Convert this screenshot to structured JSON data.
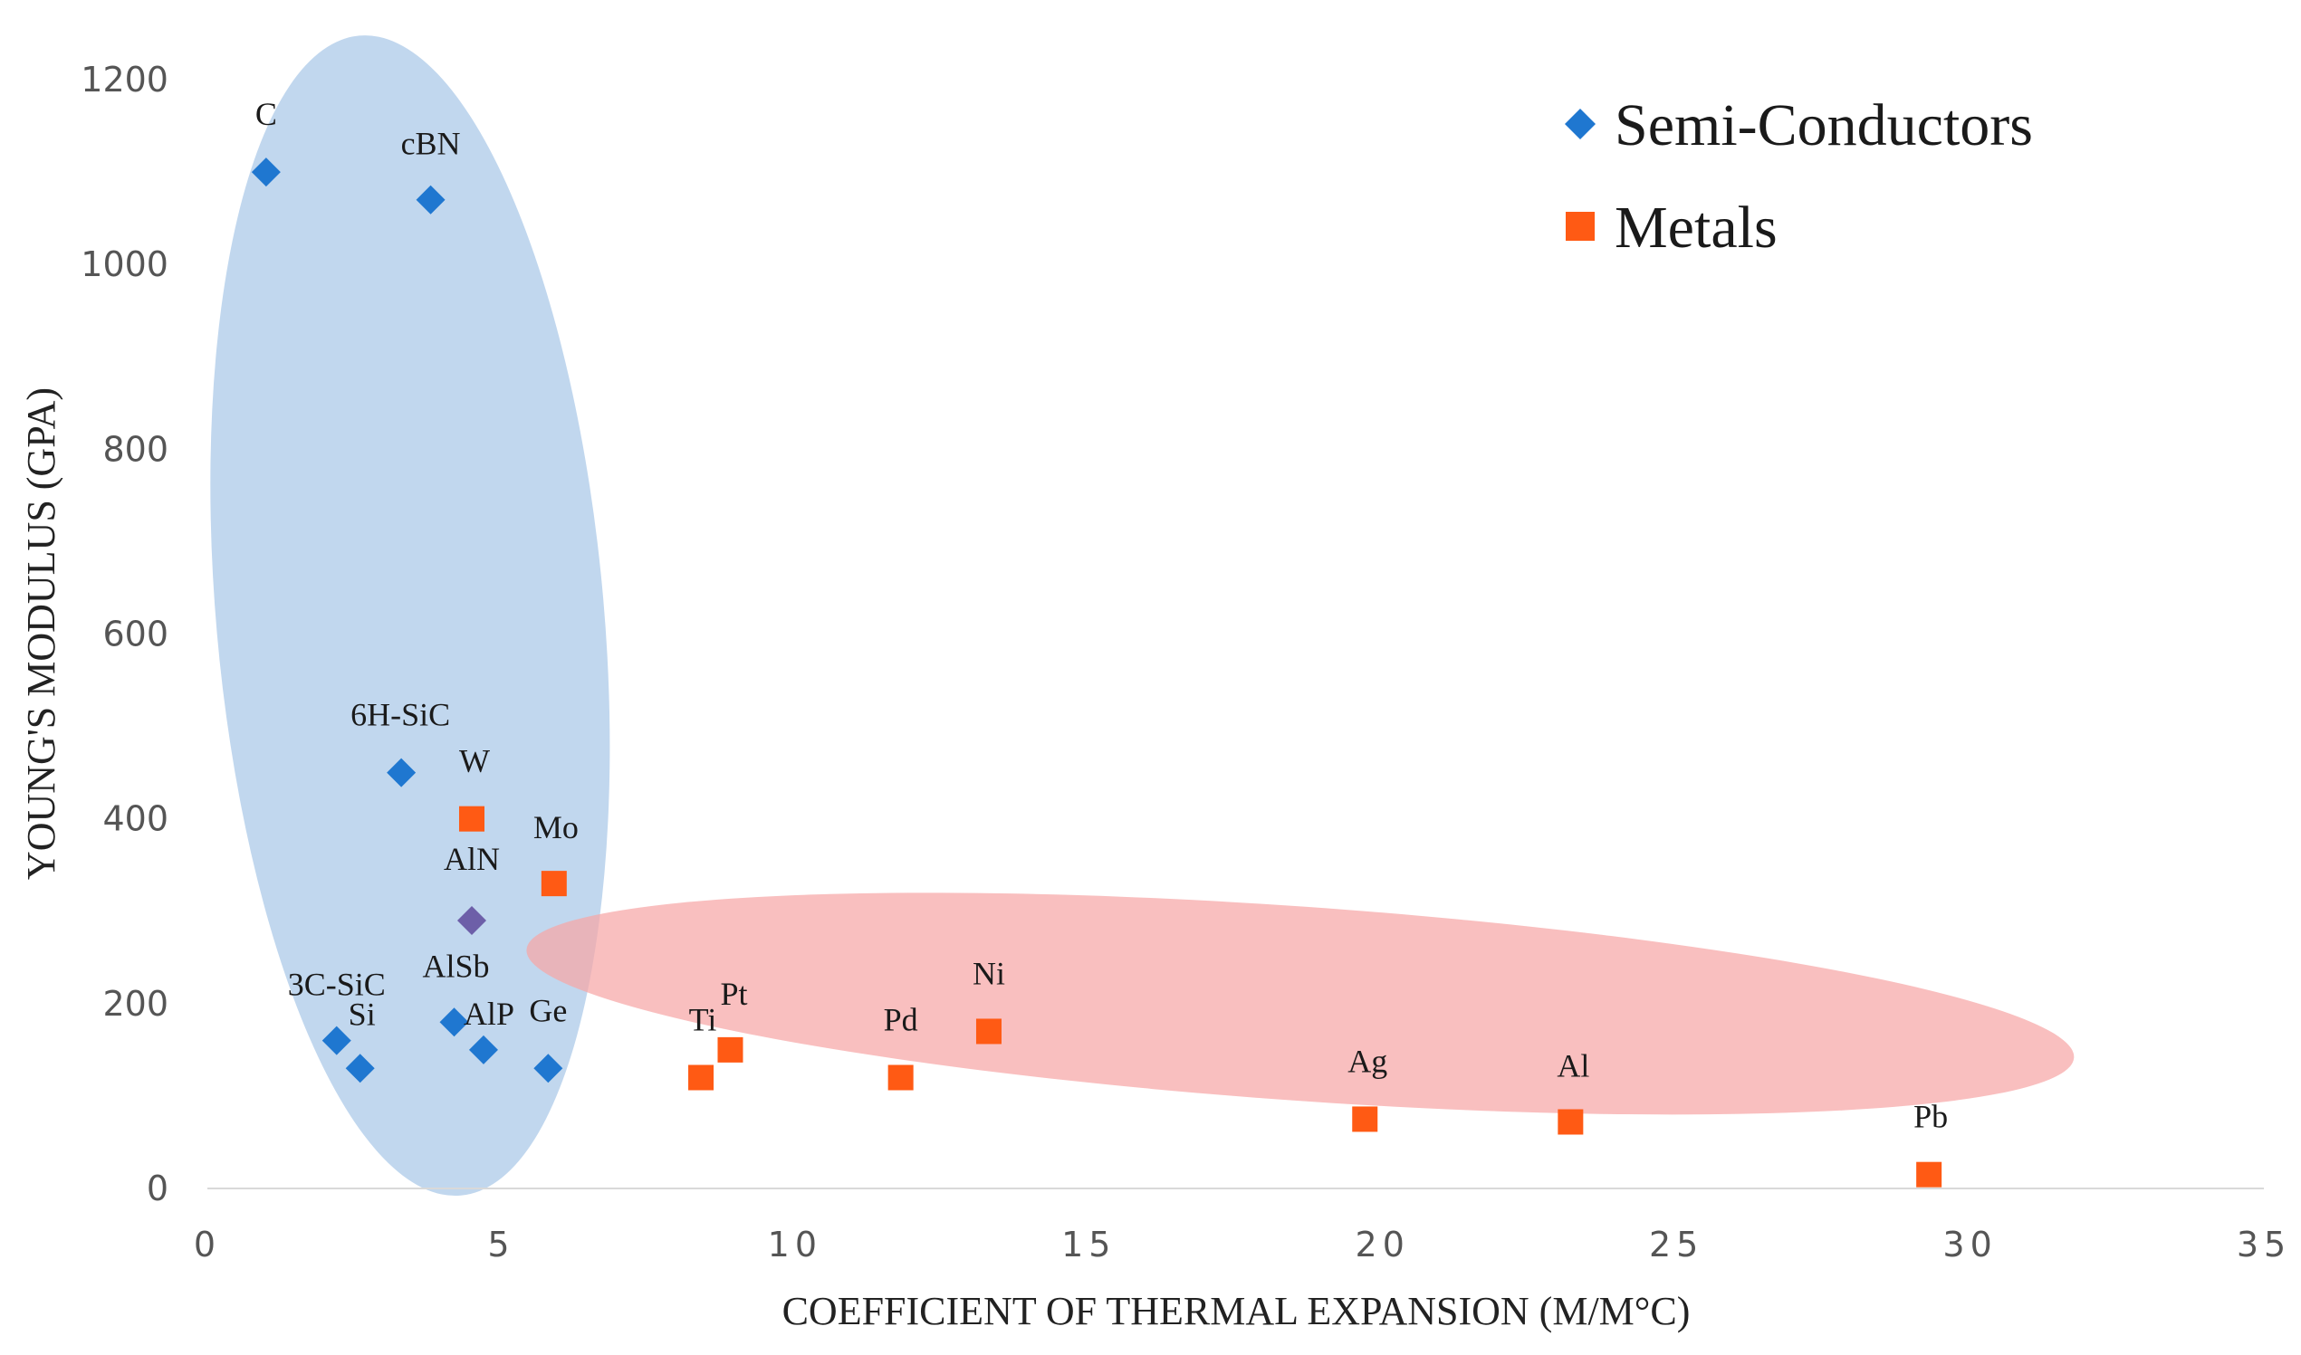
{
  "chart_data": {
    "type": "scatter",
    "title": "",
    "xlabel": "COEFFICIENT OF THERMAL EXPANSION (M/M°C)",
    "ylabel": "YOUNG'S MODULUS (GPA)",
    "xlim": [
      0,
      35
    ],
    "ylim": [
      0,
      1200
    ],
    "x_ticks": [
      0,
      5,
      10,
      15,
      20,
      25,
      30,
      35
    ],
    "y_ticks": [
      0,
      200,
      400,
      600,
      800,
      1000,
      1200
    ],
    "x_tick_labels": [
      "0",
      "5",
      "10",
      "15",
      "20",
      "25",
      "30",
      "35"
    ],
    "y_tick_labels": [
      "0",
      "200",
      "400",
      "600",
      "800",
      "1000",
      "1200"
    ],
    "grid": false,
    "legend_position": "top-right",
    "series": [
      {
        "name": "Semi-Conductors",
        "marker": "diamond",
        "color": "#1F77D0",
        "points": [
          {
            "label": "C",
            "x": 1.0,
            "y": 1100
          },
          {
            "label": "cBN",
            "x": 3.8,
            "y": 1070
          },
          {
            "label": "6H-SiC",
            "x": 3.3,
            "y": 450
          },
          {
            "label": "AlN",
            "x": 4.5,
            "y": 290
          },
          {
            "label": "3C-SiC",
            "x": 2.2,
            "y": 160
          },
          {
            "label": "Si",
            "x": 2.6,
            "y": 130
          },
          {
            "label": "AlSb",
            "x": 4.2,
            "y": 180
          },
          {
            "label": "AlP",
            "x": 4.7,
            "y": 150
          },
          {
            "label": "Ge",
            "x": 5.8,
            "y": 130
          }
        ]
      },
      {
        "name": "Metals",
        "marker": "square",
        "color": "#FF5A14",
        "points": [
          {
            "label": "W",
            "x": 4.5,
            "y": 400
          },
          {
            "label": "Mo",
            "x": 5.9,
            "y": 330
          },
          {
            "label": "Ti",
            "x": 8.4,
            "y": 120
          },
          {
            "label": "Pt",
            "x": 8.9,
            "y": 150
          },
          {
            "label": "Pd",
            "x": 11.8,
            "y": 120
          },
          {
            "label": "Ni",
            "x": 13.3,
            "y": 170
          },
          {
            "label": "Ag",
            "x": 19.7,
            "y": 75
          },
          {
            "label": "Al",
            "x": 23.2,
            "y": 72
          },
          {
            "label": "Pb",
            "x": 29.3,
            "y": 15
          }
        ]
      }
    ],
    "regions": [
      {
        "name": "semi-conductors-region",
        "color": "#A9C8E8",
        "center": [
          3.45,
          620
        ],
        "radius_x": 3.3,
        "radius_y": 630
      },
      {
        "name": "metals-region",
        "color": "#F7A6A6",
        "center": [
          18.6,
          200
        ],
        "radius_x": 13.2,
        "radius_y": 105
      }
    ]
  }
}
